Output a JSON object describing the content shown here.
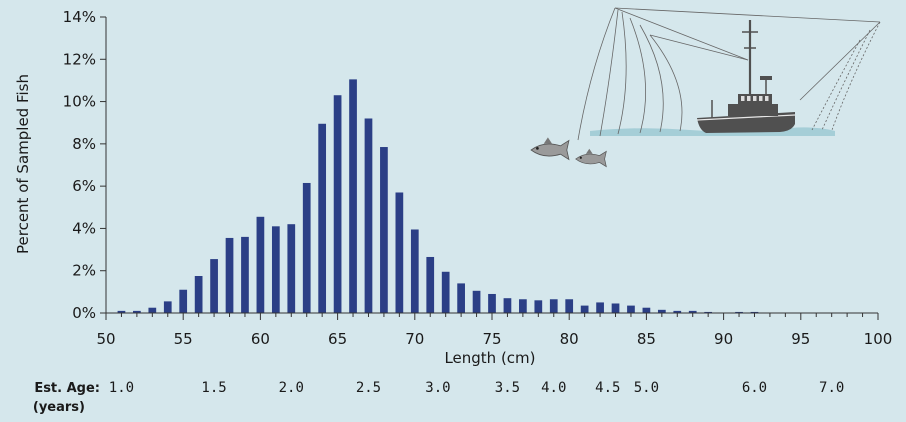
{
  "chart_data": {
    "type": "bar",
    "xlabel": "Length (cm)",
    "ylabel": "Percent of Sampled Fish",
    "xlim": [
      50,
      100
    ],
    "ylim": [
      0,
      14
    ],
    "xticks": [
      50,
      55,
      60,
      65,
      70,
      75,
      80,
      85,
      90,
      95,
      100
    ],
    "xtick_labels": [
      "50",
      "55",
      "60",
      "65",
      "70",
      "75",
      "80",
      "85",
      "90",
      "95",
      "100"
    ],
    "yticks": [
      0,
      2,
      4,
      6,
      8,
      10,
      12,
      14
    ],
    "ytick_labels": [
      "0%",
      "2%",
      "4%",
      "6%",
      "8%",
      "10%",
      "12%",
      "14%"
    ],
    "bar_color": "#2b3f86",
    "grid": false,
    "x": [
      51,
      52,
      53,
      54,
      55,
      56,
      57,
      58,
      59,
      60,
      61,
      62,
      63,
      64,
      65,
      66,
      67,
      68,
      69,
      70,
      71,
      72,
      73,
      74,
      75,
      76,
      77,
      78,
      79,
      80,
      81,
      82,
      83,
      84,
      85,
      86,
      87,
      88,
      89,
      90,
      91,
      92,
      93,
      94,
      95,
      96,
      97,
      98,
      99
    ],
    "values": [
      0.1,
      0.1,
      0.25,
      0.55,
      1.1,
      1.75,
      2.55,
      3.55,
      3.6,
      4.55,
      4.1,
      4.2,
      6.15,
      8.95,
      10.3,
      11.05,
      9.2,
      7.85,
      5.7,
      3.95,
      2.65,
      1.95,
      1.4,
      1.05,
      0.9,
      0.7,
      0.65,
      0.6,
      0.65,
      0.65,
      0.35,
      0.5,
      0.45,
      0.35,
      0.25,
      0.15,
      0.1,
      0.1,
      0.05,
      0,
      0.05,
      0.05,
      0,
      0,
      0,
      0,
      0,
      0,
      0
    ]
  },
  "age_axis": {
    "title_line1": "Est. Age:",
    "title_line2": "(years)",
    "labels": [
      {
        "text": "1.0",
        "length": 51
      },
      {
        "text": "1.5",
        "length": 57
      },
      {
        "text": "2.0",
        "length": 62
      },
      {
        "text": "2.5",
        "length": 67
      },
      {
        "text": "3.0",
        "length": 71.5
      },
      {
        "text": "3.5",
        "length": 76
      },
      {
        "text": "4.0",
        "length": 79
      },
      {
        "text": "4.5",
        "length": 82.5
      },
      {
        "text": "5.0",
        "length": 85
      },
      {
        "text": "6.0",
        "length": 92
      },
      {
        "text": "7.0",
        "length": 97
      }
    ]
  },
  "illustration": {
    "icon": "fishing-boat-icon",
    "boat_color": "#505050",
    "water_color": "#9cc9d3"
  }
}
